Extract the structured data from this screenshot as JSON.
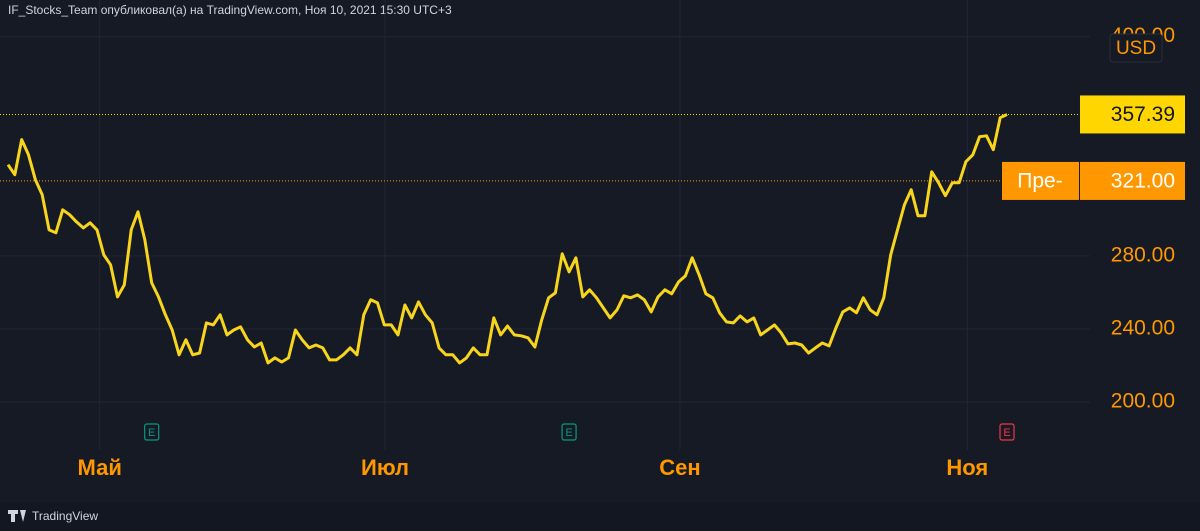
{
  "header": "IF_Stocks_Team опубликовал(а) на TradingView.com, Ноя 10, 2021 15:30 UTC+3",
  "footer": "TradingView",
  "chart_data": {
    "type": "line",
    "currency": "USD",
    "color": "#f7d51d",
    "values": [
      329.9,
      324.4,
      343.6,
      335.3,
      321.6,
      313.4,
      294.2,
      292.6,
      305.2,
      302.5,
      298.6,
      295.3,
      298.1,
      294.2,
      280.5,
      275.1,
      257.5,
      264.1,
      294.2,
      304.1,
      288.8,
      265.2,
      257.5,
      247.7,
      239.4,
      225.8,
      234.0,
      225.8,
      226.8,
      243.3,
      242.2,
      247.7,
      236.7,
      239.4,
      241.1,
      234.0,
      230.1,
      232.3,
      221.4,
      224.1,
      221.9,
      224.1,
      239.4,
      234.0,
      229.6,
      231.2,
      229.6,
      223.0,
      223.0,
      225.8,
      229.6,
      225.8,
      247.7,
      255.9,
      254.2,
      242.2,
      242.2,
      236.7,
      253.1,
      246.0,
      254.8,
      247.7,
      243.3,
      229.6,
      225.8,
      225.8,
      221.4,
      224.1,
      229.6,
      225.8,
      225.8,
      246.0,
      236.7,
      241.6,
      236.7,
      236.2,
      235.1,
      230.1,
      244.9,
      257.0,
      259.7,
      281.1,
      271.2,
      278.9,
      257.5,
      261.4,
      257.0,
      251.5,
      246.0,
      250.4,
      258.1,
      257.0,
      258.6,
      255.9,
      249.3,
      257.5,
      261.4,
      259.2,
      265.7,
      269.0,
      278.9,
      269.6,
      259.2,
      257.0,
      248.8,
      243.8,
      243.3,
      247.1,
      243.8,
      246.0,
      236.7,
      239.4,
      242.2,
      237.8,
      231.8,
      232.3,
      231.2,
      226.8,
      229.6,
      232.3,
      230.7,
      240.5,
      249.3,
      251.5,
      248.8,
      257.0,
      250.4,
      247.7,
      257.0,
      280.5,
      294.2,
      307.9,
      316.2,
      301.9,
      301.9,
      326.0,
      320.0,
      312.9,
      320.0,
      320.0,
      331.5,
      335.3,
      345.2,
      345.7,
      338.1,
      355.6,
      357.39
    ],
    "xlim": [
      0,
      146
    ],
    "xticks": [
      {
        "value": 13.4,
        "label": "Май"
      },
      {
        "value": 55.1,
        "label": "Июл"
      },
      {
        "value": 98.2,
        "label": "Сен"
      },
      {
        "value": 140.2,
        "label": "Ноя"
      }
    ],
    "ylim": [
      173.7,
      408
    ],
    "yticks": [
      {
        "value": 200,
        "label": "200.00"
      },
      {
        "value": 240,
        "label": "240.00"
      },
      {
        "value": 280,
        "label": "280.00"
      },
      {
        "value": 400,
        "label": "400.00"
      }
    ],
    "grid": true,
    "price_lines": [
      {
        "value": 357.39,
        "label": "357.39",
        "color": "#ffd600"
      },
      {
        "value": 321,
        "label": "321.00",
        "tag": "Пре-",
        "color": "#ff9800"
      }
    ],
    "events": [
      {
        "index": 21,
        "label": "E",
        "color": "#089981"
      },
      {
        "index": 82,
        "label": "E",
        "color": "#089981"
      },
      {
        "index": 146,
        "label": "E",
        "color": "#f23645"
      }
    ]
  }
}
